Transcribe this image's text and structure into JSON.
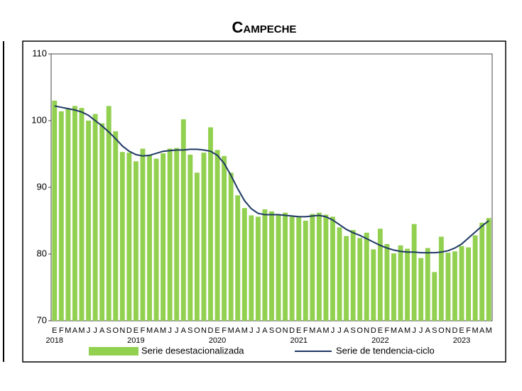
{
  "chart_data": {
    "type": "bar_line",
    "title": "Campeche",
    "categories": [
      "E",
      "F",
      "M",
      "A",
      "M",
      "J",
      "J",
      "A",
      "S",
      "O",
      "N",
      "D",
      "E",
      "F",
      "M",
      "A",
      "M",
      "J",
      "J",
      "A",
      "S",
      "O",
      "N",
      "D",
      "E",
      "F",
      "M",
      "A",
      "M",
      "J",
      "J",
      "A",
      "S",
      "O",
      "N",
      "D",
      "E",
      "F",
      "M",
      "A",
      "M",
      "J",
      "J",
      "A",
      "S",
      "O",
      "N",
      "D",
      "E",
      "F",
      "M",
      "A",
      "M",
      "J",
      "J",
      "A",
      "S",
      "O",
      "N",
      "D",
      "E",
      "F",
      "M",
      "A",
      "M"
    ],
    "year_labels": [
      "2018",
      "2019",
      "2020",
      "2021",
      "2022",
      "2023"
    ],
    "series": [
      {
        "name": "Serie desestacionalizada",
        "type": "bar",
        "color": "#92d050",
        "values": [
          103.0,
          101.4,
          101.8,
          102.2,
          101.9,
          100.0,
          101.0,
          99.6,
          102.2,
          98.4,
          95.3,
          95.2,
          93.9,
          95.8,
          94.8,
          94.3,
          95.1,
          95.8,
          95.9,
          100.2,
          94.9,
          92.2,
          95.2,
          99.0,
          95.6,
          94.7,
          92.2,
          88.8,
          86.9,
          85.8,
          85.6,
          86.7,
          86.4,
          85.8,
          86.2,
          85.6,
          85.5,
          85.0,
          86.0,
          86.2,
          85.9,
          85.6,
          84.0,
          82.7,
          83.6,
          82.4,
          83.2,
          80.7,
          83.8,
          81.5,
          80.1,
          81.3,
          80.8,
          84.5,
          79.4,
          80.9,
          77.3,
          82.6,
          80.2,
          80.4,
          81.2,
          81.0,
          82.8,
          84.7,
          85.4
        ]
      },
      {
        "name": "Serie de tendencia-ciclo",
        "type": "line",
        "color": "#1f3864",
        "values": [
          102.2,
          102.0,
          101.8,
          101.6,
          101.3,
          100.8,
          100.0,
          99.2,
          98.3,
          97.3,
          96.2,
          95.4,
          94.9,
          94.7,
          94.8,
          95.1,
          95.4,
          95.5,
          95.6,
          95.6,
          95.7,
          95.7,
          95.6,
          95.4,
          94.8,
          93.6,
          91.8,
          89.8,
          88.0,
          86.8,
          86.1,
          85.9,
          85.9,
          85.9,
          85.8,
          85.7,
          85.6,
          85.6,
          85.7,
          85.8,
          85.6,
          85.1,
          84.4,
          83.7,
          83.2,
          82.8,
          82.3,
          81.8,
          81.3,
          80.9,
          80.6,
          80.4,
          80.3,
          80.3,
          80.2,
          80.2,
          80.2,
          80.3,
          80.5,
          80.9,
          81.5,
          82.4,
          83.3,
          84.2,
          85.0
        ]
      }
    ],
    "ylim": [
      70,
      110
    ],
    "yticks": [
      70,
      80,
      90,
      100,
      110
    ],
    "grid": false
  }
}
